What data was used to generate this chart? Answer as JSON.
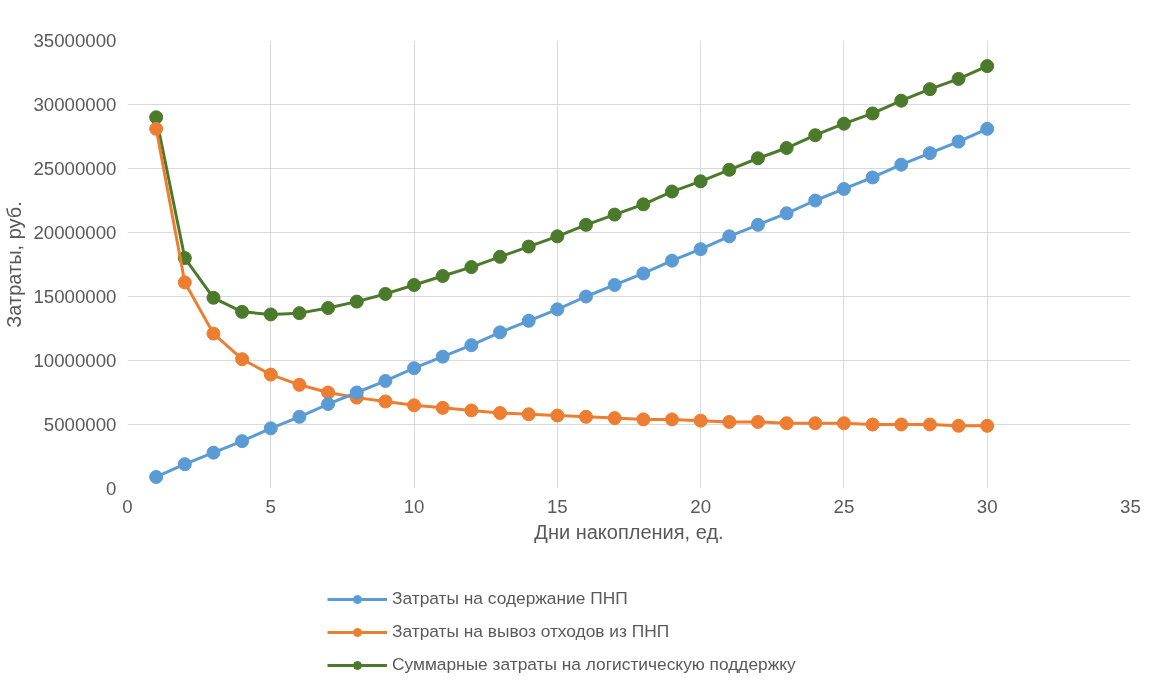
{
  "chart_data": {
    "type": "line",
    "xlabel": "Дни накопления, ед.",
    "ylabel": "Затраты, руб.",
    "x": [
      1,
      2,
      3,
      4,
      5,
      6,
      7,
      8,
      9,
      10,
      11,
      12,
      13,
      14,
      15,
      16,
      17,
      18,
      19,
      20,
      21,
      22,
      23,
      24,
      25,
      26,
      27,
      28,
      29,
      30
    ],
    "series": [
      {
        "name": "Затраты на содержание ПНП",
        "color": "#5b9bd5",
        "values": [
          900000,
          1900000,
          2800000,
          3700000,
          4700000,
          5600000,
          6600000,
          7500000,
          8400000,
          9400000,
          10300000,
          11200000,
          12200000,
          13100000,
          14000000,
          15000000,
          15900000,
          16800000,
          17800000,
          18700000,
          19700000,
          20600000,
          21500000,
          22500000,
          23400000,
          24300000,
          25300000,
          26200000,
          27100000,
          28100000
        ]
      },
      {
        "name": "Затраты на вывоз отходов из ПНП",
        "color": "#ed7d31",
        "values": [
          28100000,
          16100000,
          12100000,
          10100000,
          8900000,
          8100000,
          7500000,
          7100000,
          6800000,
          6500000,
          6300000,
          6100000,
          5900000,
          5800000,
          5700000,
          5600000,
          5500000,
          5400000,
          5400000,
          5300000,
          5200000,
          5200000,
          5100000,
          5100000,
          5100000,
          5000000,
          5000000,
          5000000,
          4900000,
          4900000
        ]
      },
      {
        "name": "Суммарные затраты на логистическую поддержку",
        "color": "#4a7a2a",
        "values": [
          29000000,
          18000000,
          14900000,
          13800000,
          13600000,
          13700000,
          14100000,
          14600000,
          15200000,
          15900000,
          16600000,
          17300000,
          18100000,
          18900000,
          19700000,
          20600000,
          21400000,
          22200000,
          23200000,
          24000000,
          24900000,
          25800000,
          26600000,
          27600000,
          28500000,
          29300000,
          30300000,
          31200000,
          32000000,
          33000000
        ]
      }
    ],
    "xlim": [
      0,
      35
    ],
    "xticks": [
      0,
      5,
      10,
      15,
      20,
      25,
      30,
      35
    ],
    "ylim": [
      0,
      35000000
    ],
    "yticks": [
      0,
      5000000,
      10000000,
      15000000,
      20000000,
      25000000,
      30000000,
      35000000
    ],
    "grid": true,
    "legend": "bottom",
    "marker": "circle",
    "line_style": "solid"
  }
}
